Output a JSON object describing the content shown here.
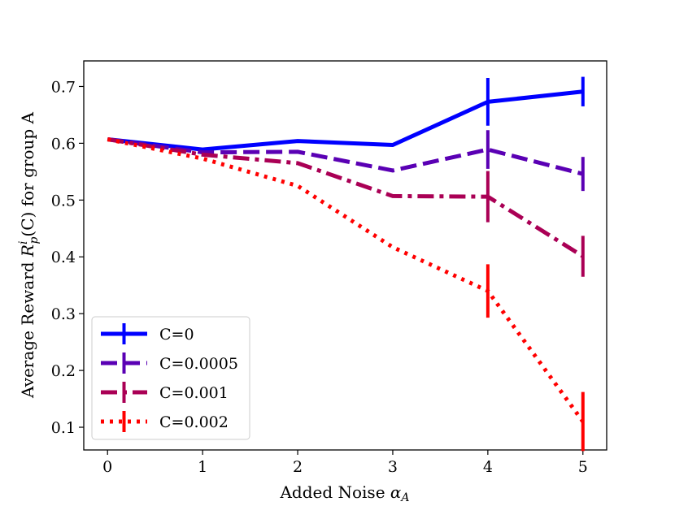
{
  "chart_data": {
    "type": "line",
    "title": "",
    "xlabel": "Added Noise α_A",
    "xlabel_main": "Added Noise ",
    "xlabel_symbol": "α",
    "xlabel_sub": "A",
    "ylabel": "Average Reward R_p^i(C) for group A",
    "ylabel_prefix": "Average Reward ",
    "ylabel_R": "R",
    "ylabel_sup": "i",
    "ylabel_sub": "p",
    "ylabel_paren": "(C)",
    "ylabel_suffix": " for group A",
    "x": [
      0,
      1,
      2,
      3,
      4,
      5
    ],
    "xlim": [
      -0.25,
      5.25
    ],
    "ylim": [
      0.06,
      0.745
    ],
    "xticks": [
      "0",
      "1",
      "2",
      "3",
      "4",
      "5"
    ],
    "yticks": [
      "0.1",
      "0.2",
      "0.3",
      "0.4",
      "0.5",
      "0.6",
      "0.7"
    ],
    "ytick_values": [
      0.1,
      0.2,
      0.3,
      0.4,
      0.5,
      0.6,
      0.7
    ],
    "legend_position": "lower-left",
    "series": [
      {
        "name": "C=0",
        "color": "#0000ff",
        "style": "solid",
        "values": [
          0.607,
          0.589,
          0.604,
          0.597,
          0.673,
          0.691
        ],
        "errors": [
          0.0,
          0.0,
          0.0,
          0.0,
          0.042,
          0.026
        ]
      },
      {
        "name": "C=0.0005",
        "color": "#5a00b4",
        "style": "dashed",
        "values": [
          0.607,
          0.584,
          0.585,
          0.552,
          0.589,
          0.546
        ],
        "errors": [
          0.0,
          0.0,
          0.0,
          0.0,
          0.034,
          0.03
        ]
      },
      {
        "name": "C=0.001",
        "color": "#aa0055",
        "style": "dashdot",
        "values": [
          0.607,
          0.58,
          0.565,
          0.507,
          0.506,
          0.401
        ],
        "errors": [
          0.0,
          0.0,
          0.0,
          0.0,
          0.045,
          0.036
        ]
      },
      {
        "name": "C=0.002",
        "color": "#ff0000",
        "style": "dotted",
        "values": [
          0.607,
          0.573,
          0.525,
          0.417,
          0.34,
          0.11
        ],
        "errors": [
          0.0,
          0.0,
          0.0,
          0.0,
          0.047,
          0.052
        ]
      }
    ]
  }
}
